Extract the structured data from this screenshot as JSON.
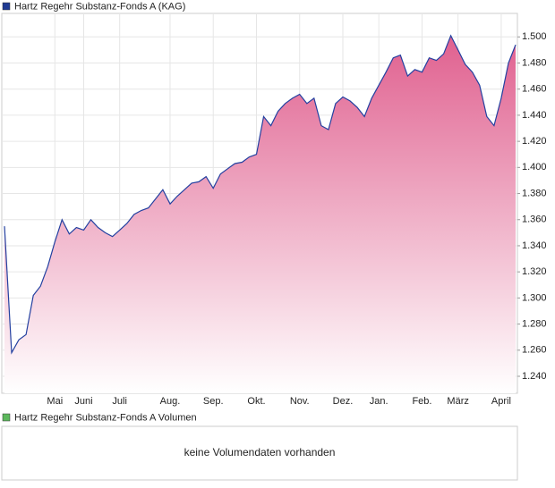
{
  "chart_data": {
    "type": "area",
    "legend": "Hartz Regehr Substanz-Fonds A (KAG)",
    "legend_color": "#1f3a93",
    "categories": [
      null,
      null,
      null,
      null,
      null,
      null,
      null,
      "Mai",
      null,
      null,
      null,
      "Juni",
      null,
      null,
      null,
      null,
      "Juli",
      null,
      null,
      null,
      null,
      null,
      null,
      "Aug.",
      null,
      null,
      null,
      null,
      null,
      "Sep.",
      null,
      null,
      null,
      null,
      null,
      "Okt.",
      null,
      null,
      null,
      null,
      null,
      "Nov.",
      null,
      null,
      null,
      null,
      null,
      "Dez.",
      null,
      null,
      null,
      null,
      "Jan.",
      null,
      null,
      null,
      null,
      null,
      "Feb.",
      null,
      null,
      null,
      null,
      "März",
      null,
      null,
      null,
      null,
      null,
      "April",
      null,
      null
    ],
    "series": [
      {
        "name": "Hartz Regehr Substanz-Fonds A (KAG)",
        "color": "#2340a0",
        "fill": "#e0608f",
        "values": [
          1.355,
          1.258,
          1.268,
          1.272,
          1.302,
          1.309,
          1.324,
          1.343,
          1.36,
          1.349,
          1.354,
          1.352,
          1.36,
          1.354,
          1.35,
          1.347,
          1.352,
          1.357,
          1.364,
          1.367,
          1.369,
          1.376,
          1.383,
          1.372,
          1.378,
          1.383,
          1.388,
          1.389,
          1.393,
          1.384,
          1.395,
          1.399,
          1.403,
          1.404,
          1.408,
          1.41,
          1.439,
          1.432,
          1.443,
          1.449,
          1.453,
          1.456,
          1.449,
          1.453,
          1.432,
          1.429,
          1.449,
          1.454,
          1.451,
          1.446,
          1.439,
          1.453,
          1.463,
          1.473,
          1.484,
          1.486,
          1.47,
          1.475,
          1.473,
          1.484,
          1.482,
          1.487,
          1.501,
          1.49,
          1.479,
          1.473,
          1.463,
          1.439,
          1.432,
          1.453,
          1.48,
          1.494
        ]
      }
    ],
    "ylim": [
      1.227,
      1.518
    ],
    "yticks": [
      {
        "value": 1.24,
        "label": "1.240"
      },
      {
        "value": 1.26,
        "label": "1.260"
      },
      {
        "value": 1.28,
        "label": "1.280"
      },
      {
        "value": 1.3,
        "label": "1.300"
      },
      {
        "value": 1.32,
        "label": "1.320"
      },
      {
        "value": 1.34,
        "label": "1.340"
      },
      {
        "value": 1.36,
        "label": "1.360"
      },
      {
        "value": 1.38,
        "label": "1.380"
      },
      {
        "value": 1.4,
        "label": "1.400"
      },
      {
        "value": 1.42,
        "label": "1.420"
      },
      {
        "value": 1.44,
        "label": "1.440"
      },
      {
        "value": 1.46,
        "label": "1.460"
      },
      {
        "value": 1.48,
        "label": "1.480"
      },
      {
        "value": 1.5,
        "label": "1.500"
      }
    ],
    "grid": true
  },
  "volume_panel": {
    "legend": "Hartz Regehr Substanz-Fonds A Volumen",
    "legend_color": "#5cb85c",
    "message": "keine Volumendaten vorhanden"
  }
}
